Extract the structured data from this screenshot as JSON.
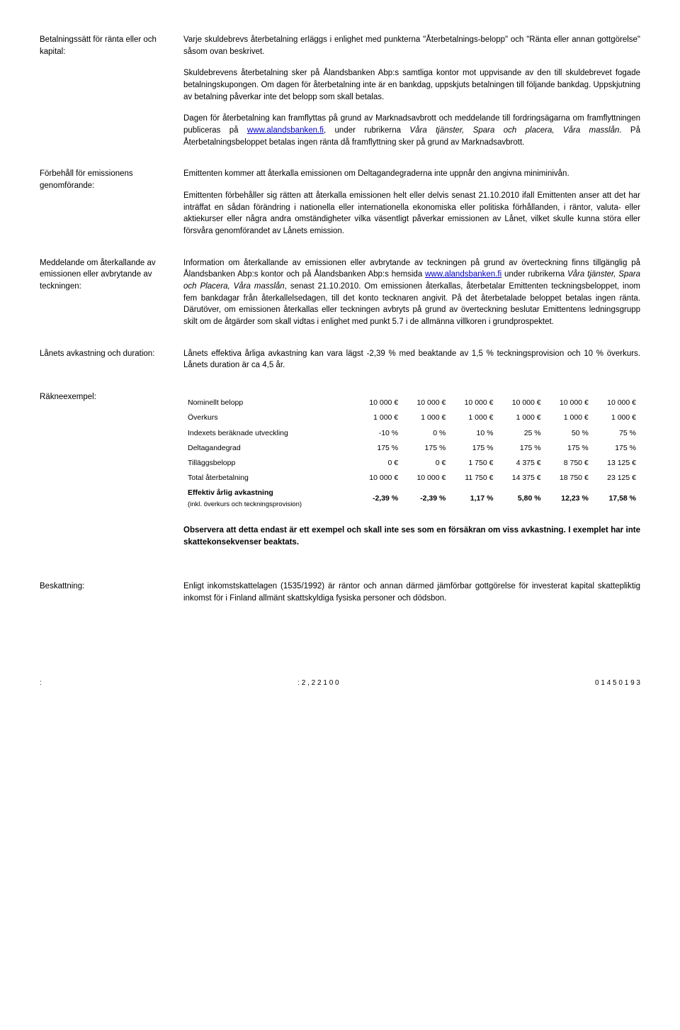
{
  "s1": {
    "label": "Betalningssätt för ränta eller och kapital:",
    "p1": "Varje skuldebrevs återbetalning erläggs i enlighet med punkterna \"Återbetalnings-belopp\" och \"Ränta eller annan gottgörelse\" såsom ovan beskrivet.",
    "p2": "Skuldebrevens återbetalning sker på Ålandsbanken Abp:s samtliga kontor mot uppvisande av den till skuldebrevet fogade betalningskupongen. Om dagen för återbetalning inte är en bankdag, uppskjuts betalningen till följande bankdag. Uppskjutning av betalning påverkar inte det belopp som skall betalas.",
    "p3a": "Dagen för återbetalning kan framflyttas på grund av Marknadsavbrott och meddelande till fordringsägarna om framflyttningen publiceras på ",
    "p3_link": "www.alandsbanken.fi",
    "p3b": ", under rubrikerna ",
    "p3_italic": "Våra tjänster, Spara och placera, Våra masslån",
    "p3c": ". På Återbetalningsbeloppet betalas ingen ränta då framflyttning sker på grund av Marknadsavbrott."
  },
  "s2": {
    "label": "Förbehåll för emissionens genomförande:",
    "p1": "Emittenten kommer att återkalla emissionen om Deltagandegraderna inte uppnår den angivna miniminivån.",
    "p2": "Emittenten förbehåller sig rätten att återkalla emissionen helt eller delvis senast 21.10.2010 ifall Emittenten anser att det har inträffat en sådan förändring i nationella eller internationella ekonomiska eller politiska förhållanden, i räntor, valuta- eller aktiekurser eller några andra omständigheter vilka väsentligt påverkar emissionen av Lånet, vilket skulle kunna störa eller försvåra genomförandet av Lånets emission."
  },
  "s3": {
    "label": "Meddelande om återkallande av emissionen eller avbrytande av teckningen:",
    "p1a": "Information om återkallande av emissionen eller avbrytande av teckningen på grund av överteckning finns tillgänglig på Ålandsbanken Abp:s kontor och på Ålandsbanken Abp:s hemsida ",
    "p1_link": "www.alandsbanken.fi",
    "p1b": " under rubrikerna ",
    "p1_italic": "Våra tjänster, Spara och Placera, Våra masslån",
    "p1c": ", senast 21.10.2010. Om emissionen återkallas, återbetalar Emittenten teckningsbeloppet, inom fem bankdagar från återkallelsedagen, till det konto tecknaren angivit. På det återbetalade beloppet betalas ingen ränta. Därutöver, om emissionen återkallas eller teckningen avbryts på grund av överteckning beslutar Emittentens ledningsgrupp skilt om de åtgärder som skall vidtas i enlighet med punkt 5.7 i de allmänna villkoren i grundprospektet."
  },
  "s4": {
    "label": "Lånets avkastning och duration:",
    "p1": "Lånets effektiva årliga avkastning kan vara lägst -2,39 % med beaktande av 1,5 % teckningsprovision och 10 % överkurs.  Lånets duration är ca 4,5 år."
  },
  "s5": {
    "label": "Räkneexempel:",
    "table": {
      "rows": [
        {
          "label": "Nominellt belopp",
          "vals": [
            "10 000 €",
            "10 000 €",
            "10 000 €",
            "10 000 €",
            "10 000 €",
            "10 000 €"
          ]
        },
        {
          "label": "Överkurs",
          "vals": [
            "1 000 €",
            "1 000 €",
            "1 000 €",
            "1 000 €",
            "1 000 €",
            "1 000 €"
          ]
        },
        {
          "label": "Indexets beräknade utveckling",
          "vals": [
            "-10 %",
            "0 %",
            "10 %",
            "25 %",
            "50 %",
            "75 %"
          ]
        },
        {
          "label": "Deltagandegrad",
          "vals": [
            "175 %",
            "175 %",
            "175 %",
            "175 %",
            "175 %",
            "175 %"
          ]
        },
        {
          "label": "Tilläggsbelopp",
          "vals": [
            "0 €",
            "0 €",
            "1 750 €",
            "4 375 €",
            "8 750 €",
            "13 125 €"
          ]
        },
        {
          "label": "Total återbetalning",
          "vals": [
            "10 000 €",
            "10 000 €",
            "11  750 €",
            "14 375 €",
            "18 750 €",
            "23 125 €"
          ]
        }
      ],
      "boldrow": {
        "label": "Effektiv årlig avkastning",
        "sub": "(inkl. överkurs och teckningsprovision)",
        "vals": [
          "-2,39 %",
          "-2,39 %",
          "1,17 %",
          "5,80 %",
          "12,23 %",
          "17,58 %"
        ]
      }
    },
    "note": "Observera att detta endast är ett exempel och skall inte ses som en försäkran om viss avkastning. I exemplet har inte skattekonsekvenser beaktats."
  },
  "s6": {
    "label": "Beskattning:",
    "p1": "Enligt inkomstskattelagen (1535/1992) är räntor och annan därmed jämförbar gottgörelse för investerat kapital skattepliktig inkomst för i Finland allmänt skattskyldiga fysiska personer och dödsbon."
  },
  "footer": {
    "c1": ":",
    "c2": ":   2 ,    2 2 1 0 0",
    "c3": "0 1 4 5 0 1 9  3"
  }
}
